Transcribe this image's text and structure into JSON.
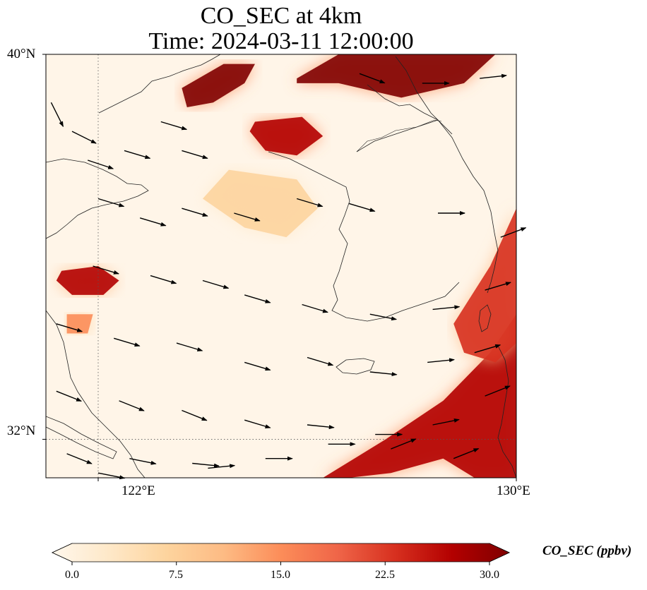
{
  "title": {
    "line1": "CO_SEC at 4km",
    "line2": "Time: 2024-03-11 12:00:00"
  },
  "axes": {
    "lon_range": [
      121.0,
      130.0
    ],
    "lat_range": [
      31.2,
      40.0
    ],
    "lon_ticks": [
      122,
      130
    ],
    "lat_ticks": [
      32,
      40
    ],
    "lon_tick_labels": [
      "122°E",
      "130°E"
    ],
    "lat_tick_labels": [
      "32°N",
      "40°N"
    ],
    "gridlines": "dotted"
  },
  "colorbar": {
    "label": "CO_SEC (ppbv)",
    "min": 0.0,
    "max": 30.0,
    "tick_values": [
      0.0,
      7.5,
      15.0,
      22.5,
      30.0
    ],
    "tick_labels": [
      "0.0",
      "7.5",
      "15.0",
      "22.5",
      "30.0"
    ],
    "extend": "both",
    "colormap": "OrRd",
    "colors": [
      "#fff7ec",
      "#fee8c8",
      "#fdd49e",
      "#fdbb84",
      "#fc8d59",
      "#ef6548",
      "#d7301f",
      "#b30000",
      "#7f0000"
    ]
  },
  "map": {
    "background_color": "#fff5e8",
    "plumes": [
      {
        "name": "northwest-plume",
        "lon": [
          123.6,
          124.4,
          125.0,
          124.8,
          124.2,
          123.7
        ],
        "lat": [
          39.3,
          39.8,
          39.8,
          39.4,
          39.0,
          38.9
        ],
        "value": 30
      },
      {
        "name": "northeast-plume",
        "lon": [
          125.8,
          126.6,
          127.4,
          128.4,
          129.6,
          129.0,
          127.8,
          126.6,
          125.8
        ],
        "lat": [
          39.5,
          40.0,
          40.0,
          40.0,
          40.0,
          39.4,
          39.1,
          39.4,
          39.4
        ],
        "value": 30
      },
      {
        "name": "central-north-plume",
        "lon": [
          125.0,
          125.9,
          126.3,
          125.8,
          125.2,
          124.9
        ],
        "lat": [
          38.6,
          38.7,
          38.3,
          37.9,
          38.0,
          38.4
        ],
        "value": 28
      },
      {
        "name": "west-coast-plume",
        "lon": [
          121.3,
          122.0,
          122.4,
          122.1,
          121.5,
          121.2
        ],
        "lat": [
          35.5,
          35.6,
          35.3,
          35.0,
          35.0,
          35.3
        ],
        "value": 26
      },
      {
        "name": "west-coast-minor-plume",
        "lon": [
          121.4,
          121.9,
          121.8,
          121.4
        ],
        "lat": [
          34.6,
          34.6,
          34.2,
          34.2
        ],
        "value": 14
      },
      {
        "name": "southeast-band",
        "lon": [
          126.3,
          127.5,
          128.6,
          129.5,
          130.0,
          130.0,
          129.2,
          128.6,
          127.6,
          126.8,
          126.0
        ],
        "lat": [
          31.2,
          32.0,
          32.8,
          33.8,
          34.6,
          31.2,
          31.2,
          31.6,
          31.3,
          31.2,
          31.2
        ],
        "value": 28
      },
      {
        "name": "east-coast-band",
        "lon": [
          128.8,
          129.5,
          130.0,
          130.0,
          129.6,
          129.0
        ],
        "lat": [
          34.4,
          35.6,
          36.8,
          34.0,
          33.6,
          33.8
        ],
        "value": 24
      },
      {
        "name": "central-haze",
        "lon": [
          124.5,
          125.8,
          126.2,
          125.6,
          124.8,
          124.0
        ],
        "lat": [
          37.6,
          37.4,
          36.8,
          36.2,
          36.4,
          37.0
        ],
        "value": 6
      }
    ],
    "wind_vectors": [
      {
        "lon": 121.1,
        "lat": 39.0,
        "u": 0.3,
        "v": -0.6
      },
      {
        "lon": 121.5,
        "lat": 38.4,
        "u": 0.8,
        "v": -0.4
      },
      {
        "lon": 121.8,
        "lat": 37.8,
        "u": 0.9,
        "v": -0.3
      },
      {
        "lon": 122.5,
        "lat": 38.0,
        "u": 1.0,
        "v": -0.3
      },
      {
        "lon": 123.2,
        "lat": 38.6,
        "u": 1.0,
        "v": -0.3
      },
      {
        "lon": 123.6,
        "lat": 38.0,
        "u": 1.0,
        "v": -0.3
      },
      {
        "lon": 122.0,
        "lat": 37.0,
        "u": 1.0,
        "v": -0.3
      },
      {
        "lon": 122.8,
        "lat": 36.6,
        "u": 1.0,
        "v": -0.3
      },
      {
        "lon": 123.6,
        "lat": 36.8,
        "u": 1.0,
        "v": -0.3
      },
      {
        "lon": 124.6,
        "lat": 36.7,
        "u": 1.0,
        "v": -0.3
      },
      {
        "lon": 125.8,
        "lat": 37.0,
        "u": 1.0,
        "v": -0.3
      },
      {
        "lon": 126.8,
        "lat": 36.9,
        "u": 1.0,
        "v": -0.3
      },
      {
        "lon": 128.5,
        "lat": 36.7,
        "u": 1.0,
        "v": 0.0
      },
      {
        "lon": 129.7,
        "lat": 36.2,
        "u": 0.8,
        "v": 0.3
      },
      {
        "lon": 121.9,
        "lat": 35.6,
        "u": 1.0,
        "v": -0.3
      },
      {
        "lon": 123.0,
        "lat": 35.4,
        "u": 1.0,
        "v": -0.3
      },
      {
        "lon": 124.0,
        "lat": 35.3,
        "u": 1.0,
        "v": -0.3
      },
      {
        "lon": 124.8,
        "lat": 35.0,
        "u": 1.0,
        "v": -0.3
      },
      {
        "lon": 125.9,
        "lat": 34.8,
        "u": 1.0,
        "v": -0.3
      },
      {
        "lon": 127.2,
        "lat": 34.6,
        "u": 1.0,
        "v": -0.2
      },
      {
        "lon": 128.4,
        "lat": 34.7,
        "u": 1.0,
        "v": 0.1
      },
      {
        "lon": 129.4,
        "lat": 35.1,
        "u": 1.0,
        "v": 0.3
      },
      {
        "lon": 121.2,
        "lat": 34.4,
        "u": 1.0,
        "v": -0.3
      },
      {
        "lon": 122.3,
        "lat": 34.1,
        "u": 1.0,
        "v": -0.3
      },
      {
        "lon": 123.5,
        "lat": 34.0,
        "u": 1.0,
        "v": -0.3
      },
      {
        "lon": 124.8,
        "lat": 33.6,
        "u": 1.0,
        "v": -0.3
      },
      {
        "lon": 126.0,
        "lat": 33.7,
        "u": 1.0,
        "v": -0.3
      },
      {
        "lon": 127.2,
        "lat": 33.4,
        "u": 1.0,
        "v": -0.1
      },
      {
        "lon": 128.3,
        "lat": 33.6,
        "u": 1.0,
        "v": 0.1
      },
      {
        "lon": 129.2,
        "lat": 33.8,
        "u": 1.0,
        "v": 0.3
      },
      {
        "lon": 121.2,
        "lat": 33.0,
        "u": 1.0,
        "v": -0.4
      },
      {
        "lon": 122.4,
        "lat": 32.8,
        "u": 1.0,
        "v": -0.4
      },
      {
        "lon": 123.6,
        "lat": 32.6,
        "u": 1.0,
        "v": -0.4
      },
      {
        "lon": 124.8,
        "lat": 32.4,
        "u": 1.0,
        "v": -0.3
      },
      {
        "lon": 126.0,
        "lat": 32.3,
        "u": 1.0,
        "v": -0.1
      },
      {
        "lon": 127.3,
        "lat": 32.1,
        "u": 1.0,
        "v": 0.0
      },
      {
        "lon": 128.4,
        "lat": 32.3,
        "u": 1.0,
        "v": 0.2
      },
      {
        "lon": 129.4,
        "lat": 32.9,
        "u": 1.0,
        "v": 0.4
      },
      {
        "lon": 121.4,
        "lat": 31.7,
        "u": 1.0,
        "v": -0.4
      },
      {
        "lon": 122.6,
        "lat": 31.6,
        "u": 1.0,
        "v": -0.2
      },
      {
        "lon": 123.8,
        "lat": 31.5,
        "u": 1.0,
        "v": -0.1
      },
      {
        "lon": 125.2,
        "lat": 31.6,
        "u": 1.0,
        "v": 0.0
      },
      {
        "lon": 126.4,
        "lat": 31.9,
        "u": 1.0,
        "v": 0.0
      },
      {
        "lon": 127.6,
        "lat": 31.8,
        "u": 1.0,
        "v": 0.4
      },
      {
        "lon": 128.8,
        "lat": 31.6,
        "u": 1.0,
        "v": 0.4
      },
      {
        "lon": 122.0,
        "lat": 31.3,
        "u": 1.0,
        "v": -0.2
      },
      {
        "lon": 124.1,
        "lat": 31.4,
        "u": 1.0,
        "v": 0.1
      },
      {
        "lon": 127.0,
        "lat": 39.6,
        "u": 0.8,
        "v": -0.3
      },
      {
        "lon": 128.2,
        "lat": 39.4,
        "u": 1.0,
        "v": 0.0
      },
      {
        "lon": 129.3,
        "lat": 39.5,
        "u": 0.9,
        "v": 0.1
      }
    ]
  }
}
